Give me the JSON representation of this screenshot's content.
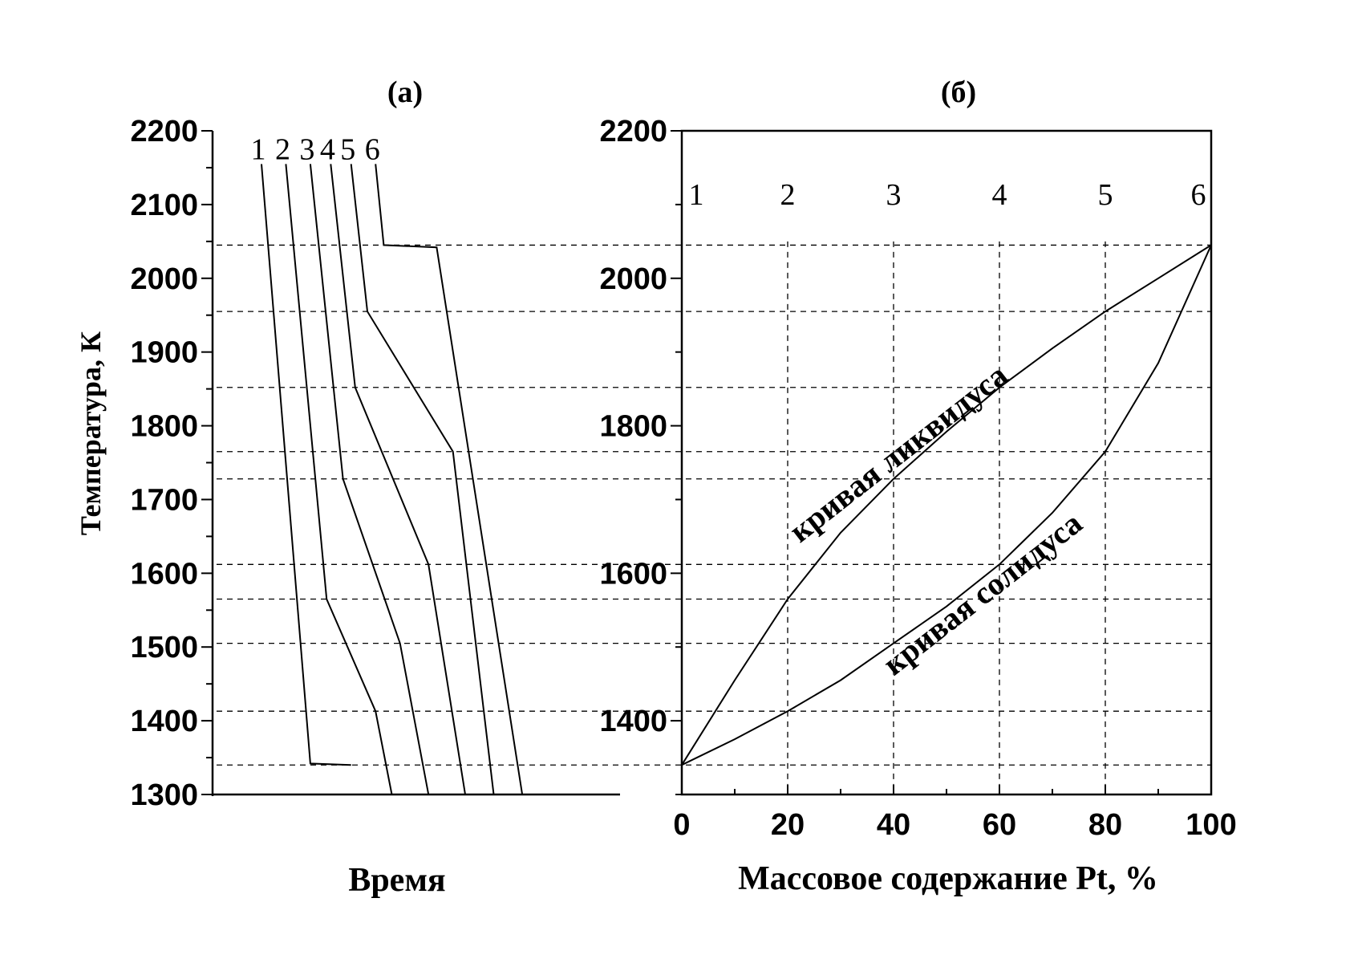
{
  "chart_data": [
    {
      "type": "line",
      "panel_title": "(а)",
      "xlabel": "Время",
      "ylabel": "Температура, К",
      "ylim": [
        1300,
        2200
      ],
      "yticks": [
        1300,
        1400,
        1500,
        1600,
        1700,
        1800,
        1900,
        2000,
        2100,
        2200
      ],
      "x_ticks_shown": false,
      "series": [
        {
          "label": "1",
          "points": [
            [
              0.12,
              2155
            ],
            [
              0.24,
              1342
            ],
            [
              0.34,
              1340
            ]
          ]
        },
        {
          "label": "2",
          "points": [
            [
              0.18,
              2155
            ],
            [
              0.28,
              1565
            ],
            [
              0.4,
              1413
            ],
            [
              0.44,
              1300
            ]
          ]
        },
        {
          "label": "3",
          "points": [
            [
              0.24,
              2155
            ],
            [
              0.32,
              1728
            ],
            [
              0.46,
              1505
            ],
            [
              0.53,
              1300
            ]
          ]
        },
        {
          "label": "4",
          "points": [
            [
              0.29,
              2155
            ],
            [
              0.35,
              1852
            ],
            [
              0.53,
              1612
            ],
            [
              0.62,
              1300
            ]
          ]
        },
        {
          "label": "5",
          "points": [
            [
              0.34,
              2155
            ],
            [
              0.38,
              1955
            ],
            [
              0.59,
              1765
            ],
            [
              0.69,
              1300
            ]
          ]
        },
        {
          "label": "6",
          "points": [
            [
              0.4,
              2155
            ],
            [
              0.42,
              2045
            ],
            [
              0.55,
              2042
            ],
            [
              0.76,
              1300
            ]
          ]
        }
      ]
    },
    {
      "type": "line",
      "panel_title": "(б)",
      "xlabel": "Массовое содержание Pt, %",
      "ylabel": "",
      "xlim": [
        0,
        100
      ],
      "ylim": [
        1300,
        2200
      ],
      "xticks": [
        0,
        20,
        40,
        60,
        80,
        100
      ],
      "yticks": [
        1400,
        1600,
        1800,
        2000,
        2200
      ],
      "composition_markers": [
        {
          "label": "1",
          "x": 0
        },
        {
          "label": "2",
          "x": 20
        },
        {
          "label": "3",
          "x": 40
        },
        {
          "label": "4",
          "x": 60
        },
        {
          "label": "5",
          "x": 80
        },
        {
          "label": "6",
          "x": 100
        }
      ],
      "series": [
        {
          "name": "кривая ликвидуса",
          "x": [
            0,
            10,
            20,
            30,
            40,
            50,
            60,
            70,
            80,
            90,
            100
          ],
          "y": [
            1340,
            1455,
            1565,
            1655,
            1728,
            1792,
            1852,
            1905,
            1955,
            2000,
            2045
          ]
        },
        {
          "name": "кривая солидуса",
          "x": [
            0,
            10,
            20,
            30,
            40,
            50,
            60,
            70,
            80,
            90,
            100
          ],
          "y": [
            1340,
            1375,
            1413,
            1455,
            1505,
            1555,
            1612,
            1682,
            1765,
            1885,
            2045
          ]
        }
      ],
      "isotherms": [
        2045,
        1955,
        1852,
        1765,
        1728,
        1612,
        1565,
        1505,
        1413,
        1340
      ]
    }
  ]
}
